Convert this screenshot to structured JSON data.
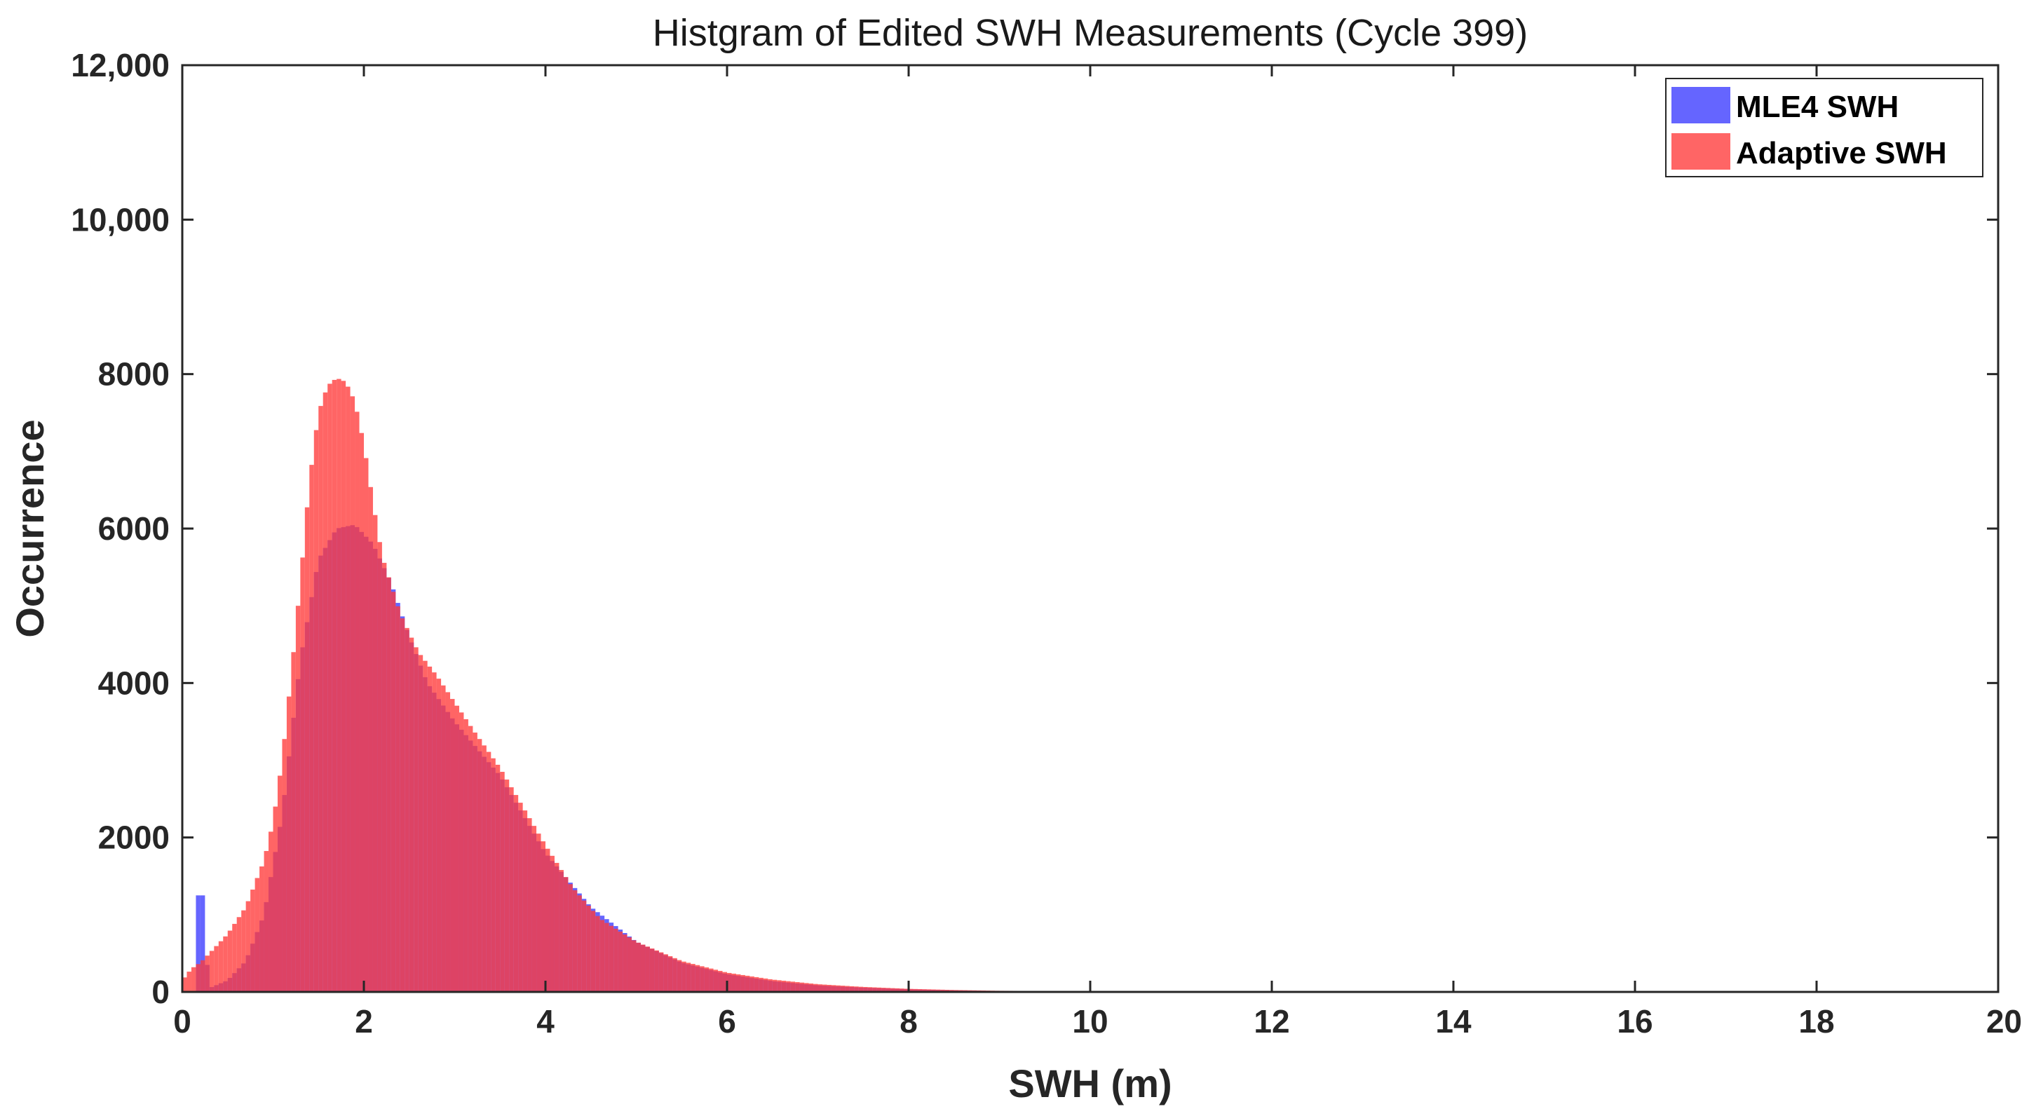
{
  "chart_data": {
    "type": "bar",
    "title": "Histgram of Edited SWH Measurements (Cycle 399)",
    "xlabel": "SWH (m)",
    "ylabel": "Occurrence",
    "xlim": [
      0,
      20
    ],
    "ylim": [
      0,
      12000
    ],
    "xticks": [
      0,
      2,
      4,
      6,
      8,
      10,
      12,
      14,
      16,
      18,
      20
    ],
    "xtick_labels": [
      "0",
      "2",
      "4",
      "6",
      "8",
      "10",
      "12",
      "14",
      "16",
      "18",
      "20"
    ],
    "yticks": [
      0,
      2000,
      4000,
      6000,
      8000,
      10000,
      12000
    ],
    "ytick_labels": [
      "0",
      "2000",
      "4000",
      "6000",
      "8000",
      "10,000",
      "12,000"
    ],
    "grid": false,
    "legend_position": "top-right",
    "bin_width_m": 0.05,
    "series": [
      {
        "name": "MLE4 SWH",
        "color": "#4a4aff",
        "opacity": 0.85,
        "points": [
          [
            0.2,
            1250
          ],
          [
            0.3,
            50
          ],
          [
            0.5,
            150
          ],
          [
            0.7,
            400
          ],
          [
            0.9,
            1000
          ],
          [
            1.1,
            2300
          ],
          [
            1.3,
            4300
          ],
          [
            1.5,
            5600
          ],
          [
            1.7,
            6000
          ],
          [
            1.9,
            6050
          ],
          [
            2.1,
            5800
          ],
          [
            2.3,
            5300
          ],
          [
            2.5,
            4600
          ],
          [
            2.7,
            4000
          ],
          [
            3.0,
            3500
          ],
          [
            3.5,
            2800
          ],
          [
            4.0,
            1800
          ],
          [
            4.5,
            1100
          ],
          [
            5.0,
            650
          ],
          [
            5.5,
            380
          ],
          [
            6.0,
            230
          ],
          [
            6.5,
            140
          ],
          [
            7.0,
            85
          ],
          [
            7.5,
            55
          ],
          [
            8.0,
            35
          ],
          [
            8.5,
            20
          ],
          [
            9.0,
            12
          ],
          [
            10.0,
            6
          ],
          [
            12.0,
            2
          ],
          [
            20.0,
            0
          ]
        ]
      },
      {
        "name": "Adaptive SWH",
        "color": "#ff3a3a",
        "opacity": 0.78,
        "points": [
          [
            0.0,
            150
          ],
          [
            0.1,
            300
          ],
          [
            0.2,
            380
          ],
          [
            0.3,
            500
          ],
          [
            0.5,
            750
          ],
          [
            0.7,
            1100
          ],
          [
            0.9,
            1700
          ],
          [
            1.0,
            2200
          ],
          [
            1.1,
            3000
          ],
          [
            1.2,
            4100
          ],
          [
            1.3,
            5300
          ],
          [
            1.4,
            6600
          ],
          [
            1.5,
            7500
          ],
          [
            1.6,
            7850
          ],
          [
            1.7,
            7950
          ],
          [
            1.8,
            7900
          ],
          [
            1.9,
            7650
          ],
          [
            2.0,
            7100
          ],
          [
            2.1,
            6350
          ],
          [
            2.2,
            5650
          ],
          [
            2.4,
            4900
          ],
          [
            2.6,
            4400
          ],
          [
            2.8,
            4100
          ],
          [
            3.0,
            3750
          ],
          [
            3.2,
            3400
          ],
          [
            3.5,
            2900
          ],
          [
            3.8,
            2300
          ],
          [
            4.0,
            1900
          ],
          [
            4.3,
            1350
          ],
          [
            4.6,
            950
          ],
          [
            5.0,
            650
          ],
          [
            5.5,
            400
          ],
          [
            6.0,
            250
          ],
          [
            6.5,
            160
          ],
          [
            7.0,
            100
          ],
          [
            7.5,
            65
          ],
          [
            8.0,
            40
          ],
          [
            8.5,
            25
          ],
          [
            9.0,
            15
          ],
          [
            10.0,
            8
          ],
          [
            12.0,
            3
          ],
          [
            20.0,
            0
          ]
        ]
      }
    ]
  }
}
